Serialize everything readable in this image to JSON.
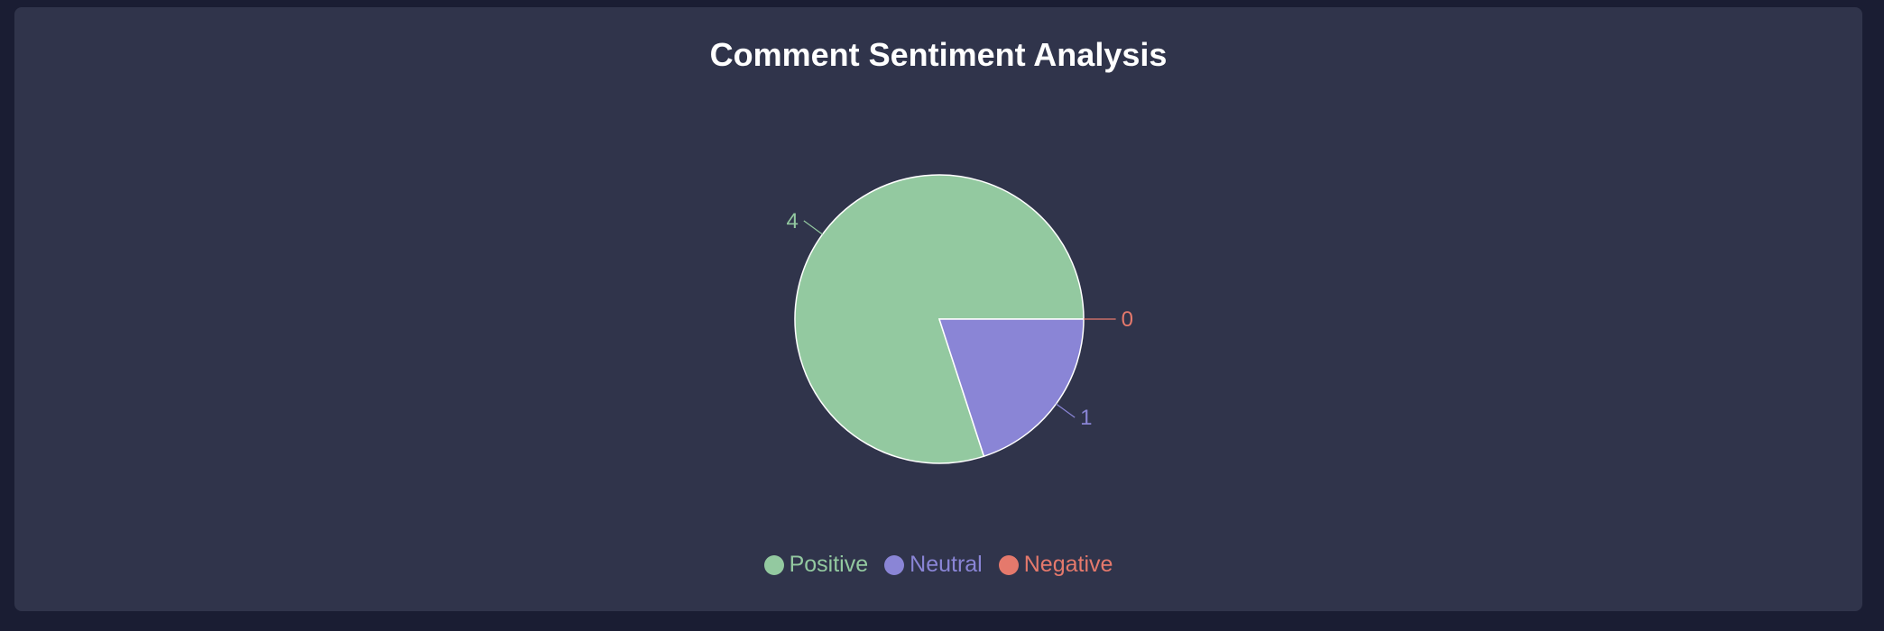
{
  "colors": {
    "positive": "#93c9a0",
    "neutral": "#8a85d6",
    "negative": "#e5796c"
  },
  "chart_data": {
    "type": "pie",
    "title": "Comment Sentiment Analysis",
    "categories": [
      "Positive",
      "Neutral",
      "Negative"
    ],
    "values": [
      4,
      1,
      0
    ],
    "series": [
      {
        "values": [
          4,
          1,
          0
        ]
      }
    ],
    "legend": {
      "placement": "bottom",
      "entries": [
        "Positive",
        "Neutral",
        "Negative"
      ]
    },
    "data_labels": [
      "4",
      "1",
      "0"
    ],
    "grid": false
  }
}
